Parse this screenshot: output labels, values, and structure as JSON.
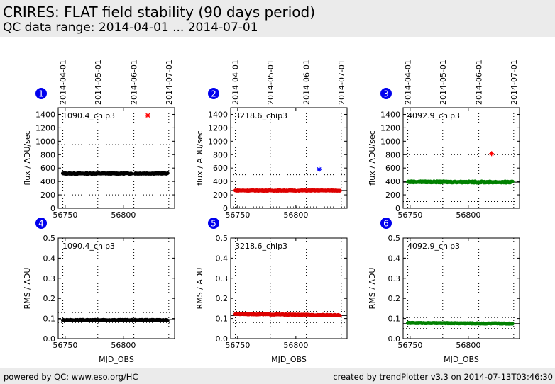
{
  "header": {
    "title": "CRIRES: FLAT field stability (90 days period)",
    "subtitle": "QC data range: 2014-04-01 ... 2014-07-01"
  },
  "footer": {
    "left": "powered by QC: www.eso.org/HC",
    "right": "created by trendPlotter v3.3 on 2014-07-13T03:46:30"
  },
  "colors": {
    "header_bg": "#ebebeb",
    "badge": "#0000ee",
    "chip1": "#000000",
    "chip2": "#dd0000",
    "chip3": "#008000",
    "outlier_red": "#ff0000",
    "outlier_blue": "#0000ff"
  },
  "chart_data": [
    {
      "panel": "1",
      "type": "scatter",
      "label": "1090.4_chip3",
      "xlabel": "",
      "ylabel": "flux / ADU/sec",
      "xlim": [
        56744,
        56844
      ],
      "ylim": [
        0,
        1500
      ],
      "yticks": [
        0,
        200,
        400,
        600,
        800,
        1000,
        1200,
        1400
      ],
      "xticks": [
        56750,
        56800
      ],
      "date_ticks": [
        "2014-04-01",
        "2014-05-01",
        "2014-06-01",
        "2014-07-01"
      ],
      "date_tick_mjd": [
        56748,
        56778,
        56809,
        56839
      ],
      "reference_lines": [
        200,
        950
      ],
      "mean_line": null,
      "color": "#000000",
      "series": [
        {
          "x": [
            56748,
            56838
          ],
          "y": [
            518,
            520
          ],
          "step": 0.5,
          "noise": 6,
          "gap": [
            56807,
            56810
          ]
        }
      ],
      "outliers": [
        {
          "x": 56821,
          "y": 1385,
          "color": "#ff0000"
        }
      ]
    },
    {
      "panel": "2",
      "type": "scatter",
      "label": "3218.6_chip3",
      "xlabel": "",
      "ylabel": "flux / ADU/sec",
      "xlim": [
        56744,
        56844
      ],
      "ylim": [
        0,
        1500
      ],
      "yticks": [
        0,
        200,
        400,
        600,
        800,
        1000,
        1200,
        1400
      ],
      "xticks": [
        56750,
        56800
      ],
      "date_ticks": [
        "2014-04-01",
        "2014-05-01",
        "2014-06-01",
        "2014-07-01"
      ],
      "date_tick_mjd": [
        56748,
        56778,
        56809,
        56839
      ],
      "reference_lines": [
        20,
        500
      ],
      "mean_line": 265,
      "color": "#dd0000",
      "series": [
        {
          "x": [
            56748,
            56838
          ],
          "y": [
            265,
            265
          ],
          "step": 0.5,
          "noise": 5,
          "gap": [
            56800,
            56802
          ]
        }
      ],
      "outliers": [
        {
          "x": 56820,
          "y": 580,
          "color": "#0000ff"
        }
      ]
    },
    {
      "panel": "3",
      "type": "scatter",
      "label": "4092.9_chip3",
      "xlabel": "",
      "ylabel": "flux / ADU/sec",
      "xlim": [
        56744,
        56844
      ],
      "ylim": [
        0,
        1500
      ],
      "yticks": [
        0,
        200,
        400,
        600,
        800,
        1000,
        1200,
        1400
      ],
      "xticks": [
        56750,
        56800
      ],
      "date_ticks": [
        "2014-04-01",
        "2014-05-01",
        "2014-06-01",
        "2014-07-01"
      ],
      "date_tick_mjd": [
        56748,
        56778,
        56809,
        56839
      ],
      "reference_lines": [
        100,
        800
      ],
      "mean_line": 390,
      "color": "#008000",
      "series": [
        {
          "x": [
            56748,
            56838
          ],
          "y": [
            395,
            390
          ],
          "step": 0.5,
          "noise": 10,
          "gap": null
        }
      ],
      "outliers": [
        {
          "x": 56820,
          "y": 815,
          "color": "#ff0000"
        }
      ]
    },
    {
      "panel": "4",
      "type": "scatter",
      "label": "1090.4_chip3",
      "xlabel": "MJD_OBS",
      "ylabel": "RMS / ADU",
      "xlim": [
        56744,
        56844
      ],
      "ylim": [
        0,
        0.5
      ],
      "yticks": [
        0.0,
        0.1,
        0.2,
        0.3,
        0.4,
        0.5
      ],
      "xticks": [
        56750,
        56800
      ],
      "date_ticks": [],
      "date_tick_mjd": [
        56748,
        56778,
        56809,
        56839
      ],
      "reference_lines": [
        0.08,
        0.13
      ],
      "mean_line": 0.095,
      "color": "#000000",
      "series": [
        {
          "x": [
            56748,
            56838
          ],
          "y": [
            0.092,
            0.092
          ],
          "step": 0.5,
          "noise": 0.002,
          "gap": null
        }
      ],
      "outliers": []
    },
    {
      "panel": "5",
      "type": "scatter",
      "label": "3218.6_chip3",
      "xlabel": "MJD_OBS",
      "ylabel": "RMS / ADU",
      "xlim": [
        56744,
        56844
      ],
      "ylim": [
        0,
        0.5
      ],
      "yticks": [
        0.0,
        0.1,
        0.2,
        0.3,
        0.4,
        0.5
      ],
      "xticks": [
        56750,
        56800
      ],
      "date_ticks": [],
      "date_tick_mjd": [
        56748,
        56778,
        56809,
        56839
      ],
      "reference_lines": [
        0.08,
        0.135
      ],
      "mean_line": 0.115,
      "color": "#dd0000",
      "series": [
        {
          "x": [
            56748,
            56838
          ],
          "y": [
            0.123,
            0.116
          ],
          "step": 0.5,
          "noise": 0.002,
          "gap": [
            56800,
            56802
          ]
        }
      ],
      "outliers": []
    },
    {
      "panel": "6",
      "type": "scatter",
      "label": "4092.9_chip3",
      "xlabel": "MJD_OBS",
      "ylabel": "RMS / ADU",
      "xlim": [
        56744,
        56844
      ],
      "ylim": [
        0,
        0.5
      ],
      "yticks": [
        0.0,
        0.1,
        0.2,
        0.3,
        0.4,
        0.5
      ],
      "xticks": [
        56750,
        56800
      ],
      "date_ticks": [],
      "date_tick_mjd": [
        56748,
        56778,
        56809,
        56839
      ],
      "reference_lines": [
        0.05,
        0.105
      ],
      "mean_line": 0.075,
      "color": "#008000",
      "series": [
        {
          "x": [
            56748,
            56838
          ],
          "y": [
            0.078,
            0.075
          ],
          "step": 0.5,
          "noise": 0.0015,
          "gap": null
        }
      ],
      "outliers": []
    }
  ]
}
